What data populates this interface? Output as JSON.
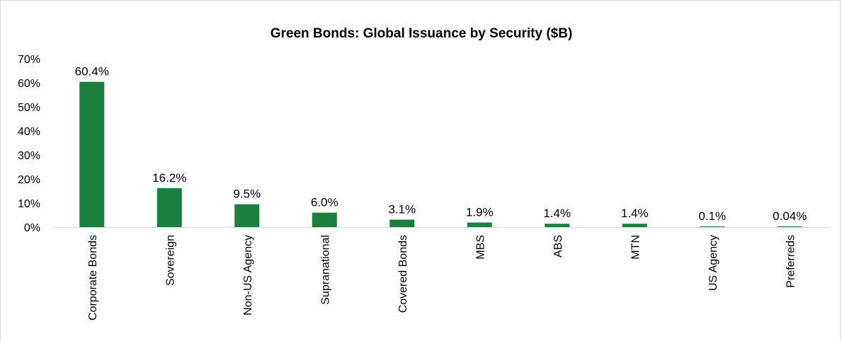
{
  "chart_data": {
    "type": "bar",
    "title": "Green Bonds: Global Issuance by Security ($B)",
    "xlabel": "",
    "ylabel": "",
    "categories": [
      "Corporate Bonds",
      "Sovereign",
      "Non-US Agency",
      "Supranational",
      "Covered Bonds",
      "MBS",
      "ABS",
      "MTN",
      "US Agency",
      "Preferreds"
    ],
    "values": [
      60.4,
      16.2,
      9.5,
      6.0,
      3.1,
      1.9,
      1.4,
      1.4,
      0.1,
      0.04
    ],
    "data_labels": [
      "60.4%",
      "16.2%",
      "9.5%",
      "6.0%",
      "3.1%",
      "1.9%",
      "1.4%",
      "1.4%",
      "0.1%",
      "0.04%"
    ],
    "yticks": [
      0,
      10,
      20,
      30,
      40,
      50,
      60,
      70
    ],
    "ytick_labels": [
      "0%",
      "10%",
      "20%",
      "30%",
      "40%",
      "50%",
      "60%",
      "70%"
    ],
    "ylim": [
      0,
      70
    ],
    "grid": false,
    "legend": "none",
    "bar_color": "#1a7f3f"
  }
}
